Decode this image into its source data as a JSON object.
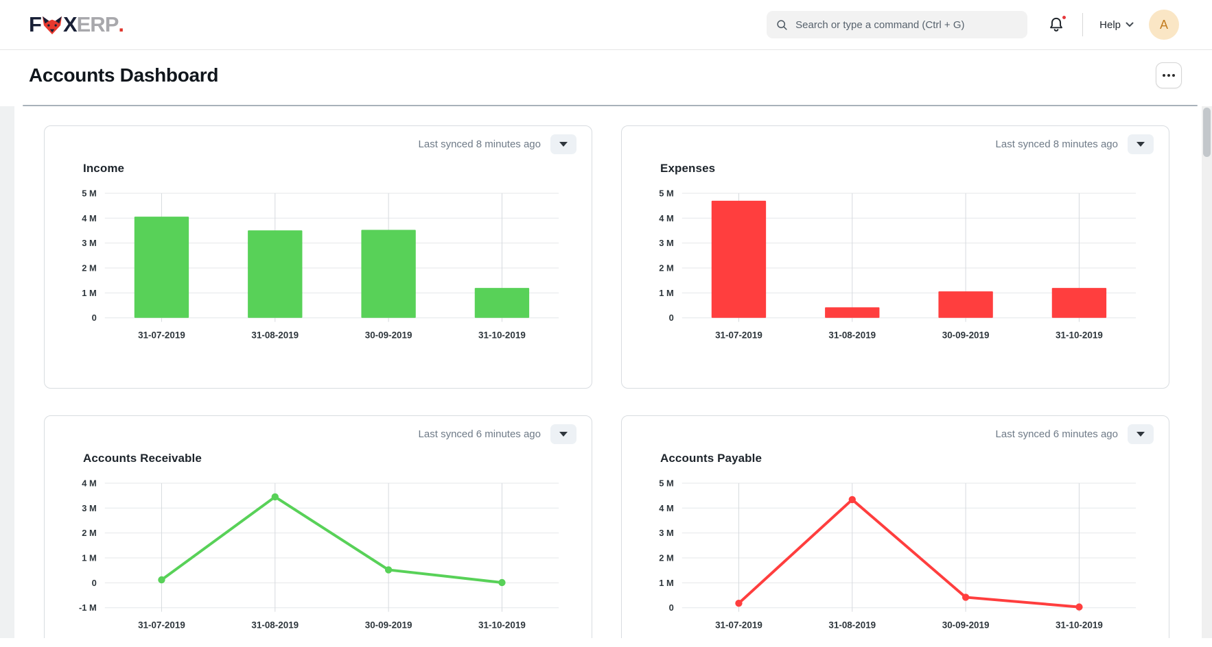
{
  "header": {
    "logo": {
      "f": "F",
      "x": "X",
      "erp": "ERP",
      "dot": "."
    },
    "search": {
      "placeholder": "Search or type a command (Ctrl + G)"
    },
    "help_label": "Help",
    "avatar_letter": "A"
  },
  "page": {
    "title": "Accounts Dashboard"
  },
  "chart_data": [
    {
      "id": "income",
      "title": "Income",
      "last_synced": "Last synced 8 minutes ago",
      "type": "bar",
      "color": "#58d158",
      "categories": [
        "31-07-2019",
        "31-08-2019",
        "30-09-2019",
        "31-10-2019"
      ],
      "values": [
        4060000,
        3510000,
        3530000,
        1200000
      ],
      "ylim": [
        0,
        5000000
      ],
      "y_ticks": [
        {
          "label": "5 M",
          "value": 5000000
        },
        {
          "label": "4 M",
          "value": 4000000
        },
        {
          "label": "3 M",
          "value": 3000000
        },
        {
          "label": "2 M",
          "value": 2000000
        },
        {
          "label": "1 M",
          "value": 1000000
        },
        {
          "label": "0",
          "value": 0
        }
      ],
      "grid": true,
      "legend": "none"
    },
    {
      "id": "expenses",
      "title": "Expenses",
      "last_synced": "Last synced 8 minutes ago",
      "type": "bar",
      "color": "#ff3e3e",
      "categories": [
        "31-07-2019",
        "31-08-2019",
        "30-09-2019",
        "31-10-2019"
      ],
      "values": [
        4700000,
        420000,
        1060000,
        1200000
      ],
      "ylim": [
        0,
        5000000
      ],
      "y_ticks": [
        {
          "label": "5 M",
          "value": 5000000
        },
        {
          "label": "4 M",
          "value": 4000000
        },
        {
          "label": "3 M",
          "value": 3000000
        },
        {
          "label": "2 M",
          "value": 2000000
        },
        {
          "label": "1 M",
          "value": 1000000
        },
        {
          "label": "0",
          "value": 0
        }
      ],
      "grid": true,
      "legend": "none"
    },
    {
      "id": "receivable",
      "title": "Accounts Receivable",
      "last_synced": "Last synced 6 minutes ago",
      "type": "line",
      "color": "#58d158",
      "categories": [
        "31-07-2019",
        "31-08-2019",
        "30-09-2019",
        "31-10-2019"
      ],
      "values": [
        120000,
        3450000,
        520000,
        10000
      ],
      "ylim": [
        -1000000,
        4000000
      ],
      "y_ticks": [
        {
          "label": "4 M",
          "value": 4000000
        },
        {
          "label": "3 M",
          "value": 3000000
        },
        {
          "label": "2 M",
          "value": 2000000
        },
        {
          "label": "1 M",
          "value": 1000000
        },
        {
          "label": "0",
          "value": 0
        },
        {
          "label": "-1 M",
          "value": -1000000
        }
      ],
      "grid": true,
      "legend": "none"
    },
    {
      "id": "payable",
      "title": "Accounts Payable",
      "last_synced": "Last synced 6 minutes ago",
      "type": "line",
      "color": "#ff3e3e",
      "categories": [
        "31-07-2019",
        "31-08-2019",
        "30-09-2019",
        "31-10-2019"
      ],
      "values": [
        180000,
        4340000,
        420000,
        30000
      ],
      "ylim": [
        0,
        5000000
      ],
      "y_ticks": [
        {
          "label": "5 M",
          "value": 5000000
        },
        {
          "label": "4 M",
          "value": 4000000
        },
        {
          "label": "3 M",
          "value": 3000000
        },
        {
          "label": "2 M",
          "value": 2000000
        },
        {
          "label": "1 M",
          "value": 1000000
        },
        {
          "label": "0",
          "value": 0
        }
      ],
      "grid": true,
      "legend": "none"
    }
  ]
}
